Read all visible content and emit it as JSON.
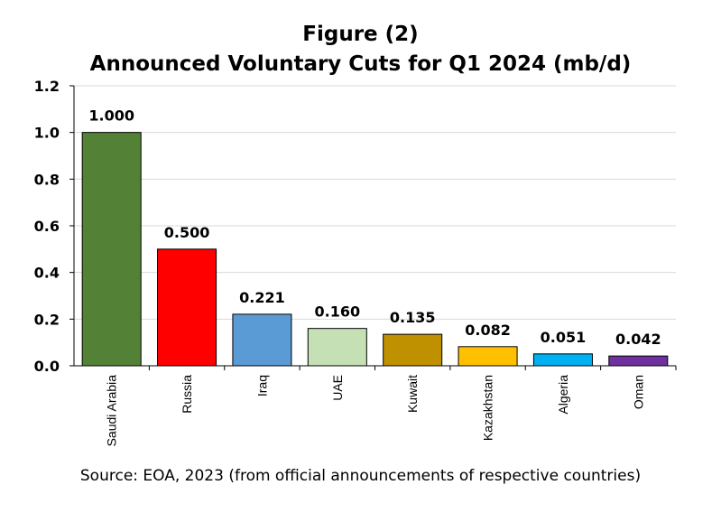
{
  "chart_data": {
    "type": "bar",
    "title": "Figure (2)",
    "subtitle": "Announced Voluntary Cuts for Q1 2024 (mb/d)",
    "xlabel": "",
    "ylabel": "",
    "categories": [
      "Saudi Arabia",
      "Russia",
      "Iraq",
      "UAE",
      "Kuwait",
      "Kazakhstan",
      "Algeria",
      "Oman"
    ],
    "values": [
      1.0,
      0.5,
      0.221,
      0.16,
      0.135,
      0.082,
      0.051,
      0.042
    ],
    "data_labels": [
      "1.000",
      "0.500",
      "0.221",
      "0.160",
      "0.135",
      "0.082",
      "0.051",
      "0.042"
    ],
    "colors": [
      "#538135",
      "#ff0000",
      "#5b9bd5",
      "#c5e0b4",
      "#bf9000",
      "#ffc000",
      "#00b0f0",
      "#7030a0"
    ],
    "ylim": [
      0,
      1.2
    ],
    "yticks": [
      0.0,
      0.2,
      0.4,
      0.6,
      0.8,
      1.0,
      1.2
    ],
    "ytick_labels": [
      "0.0",
      "0.2",
      "0.4",
      "0.6",
      "0.8",
      "1.0",
      "1.2"
    ],
    "grid": true,
    "legend": "none",
    "source": "Source: EOA, 2023 (from official announcements of respective countries)"
  }
}
